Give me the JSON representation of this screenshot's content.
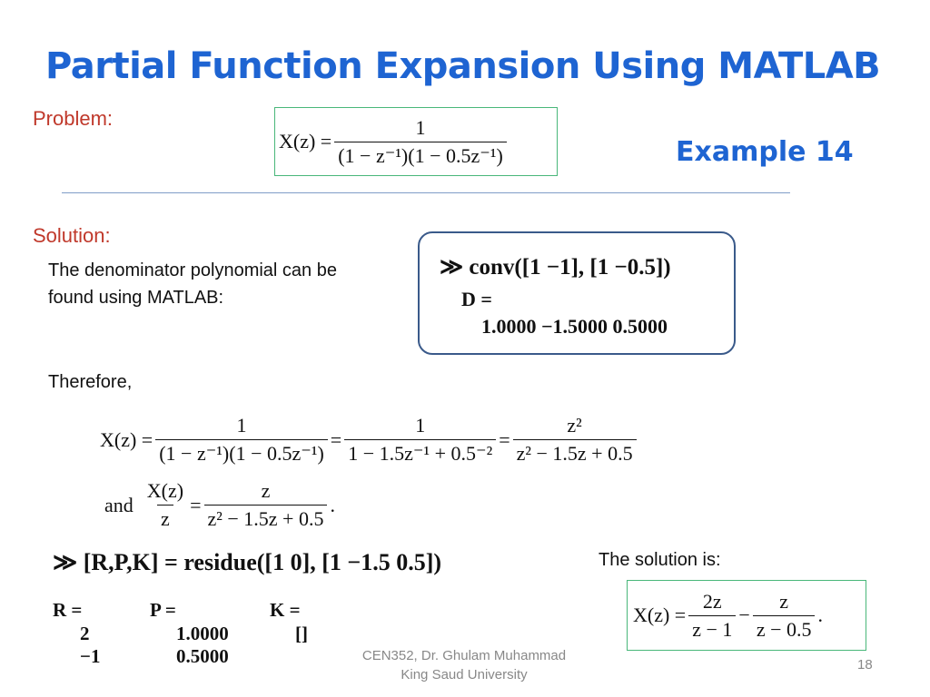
{
  "title": "Partial Function Expansion Using MATLAB",
  "example_label": "Example 14",
  "problem": {
    "label": "Problem:",
    "lhs": "X(z) =",
    "num": "1",
    "den": "(1 − z⁻¹)(1 − 0.5z⁻¹)"
  },
  "solution": {
    "label": "Solution:",
    "text_line1": "The denominator polynomial can be",
    "text_line2": "found using MATLAB:",
    "therefore": "Therefore,"
  },
  "matlab_box": {
    "command": "≫ conv([1  −1], [1  −0.5])",
    "result_label": "D =",
    "result": "1.0000  −1.5000  0.5000"
  },
  "equation1": {
    "lhs": "X(z) =",
    "f1_num": "1",
    "f1_den": "(1 − z⁻¹)(1 − 0.5z⁻¹)",
    "eq2": "=",
    "f2_num": "1",
    "f2_den": "1 − 1.5z⁻¹ + 0.5⁻²",
    "eq3": "=",
    "f3_num": "z²",
    "f3_den": "z² − 1.5z + 0.5"
  },
  "equation2": {
    "and": "and",
    "lhs_num": "X(z)",
    "lhs_den": "z",
    "eq": "=",
    "rhs_num": "z",
    "rhs_den": "z² − 1.5z + 0.5",
    "end": "."
  },
  "residue_cmd": "≫ [R,P,K] = residue([1  0], [1  −1.5  0.5])",
  "residue_out": {
    "R_label": "R =",
    "R_values": [
      "2",
      "−1"
    ],
    "P_label": "P =",
    "P_values": [
      "1.0000",
      "0.5000"
    ],
    "K_label": "K =",
    "K_value": "[]"
  },
  "solution_is": "The solution is:",
  "final": {
    "lhs": "X(z) =",
    "f1_num": "2z",
    "f1_den": "z − 1",
    "minus": "−",
    "f2_num": "z",
    "f2_den": "z − 0.5",
    "end": "."
  },
  "footer": {
    "line1": "CEN352, Dr. Ghulam Muhammad",
    "line2": "King Saud University"
  },
  "page_number": "18",
  "colors": {
    "title": "#1e64d2",
    "label": "#c0392b",
    "box_green": "#49b77a",
    "box_blue": "#3a5a8a"
  }
}
